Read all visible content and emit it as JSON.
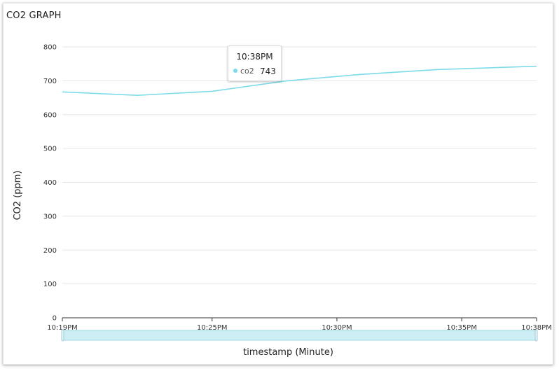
{
  "title": "CO2 GRAPH",
  "colors": {
    "series": "#7ddbe8",
    "grid": "#e6e6e6",
    "brush_fill": "#cdeef5",
    "brush_stroke": "#9fd8e4"
  },
  "chart_data": {
    "type": "line",
    "title": "CO2 GRAPH",
    "xlabel": "timestamp (Minute)",
    "ylabel": "CO2 (ppm)",
    "ylim": [
      0,
      800
    ],
    "yticks": [
      0,
      100,
      200,
      300,
      400,
      500,
      600,
      700,
      800
    ],
    "x_range_minutes": [
      0,
      19
    ],
    "xticks": [
      {
        "minute": 0,
        "label": "10:19PM"
      },
      {
        "minute": 6,
        "label": "10:25PM"
      },
      {
        "minute": 11,
        "label": "10:30PM"
      },
      {
        "minute": 16,
        "label": "10:35PM"
      },
      {
        "minute": 19,
        "label": "10:38PM"
      }
    ],
    "series": [
      {
        "name": "co2",
        "x_minutes": [
          0,
          3,
          6,
          9,
          12,
          15,
          19
        ],
        "values": [
          667,
          657,
          669,
          700,
          719,
          733,
          743
        ]
      }
    ],
    "grid": true
  },
  "tooltip": {
    "time": "10:38PM",
    "series_name": "co2",
    "value": "743"
  }
}
